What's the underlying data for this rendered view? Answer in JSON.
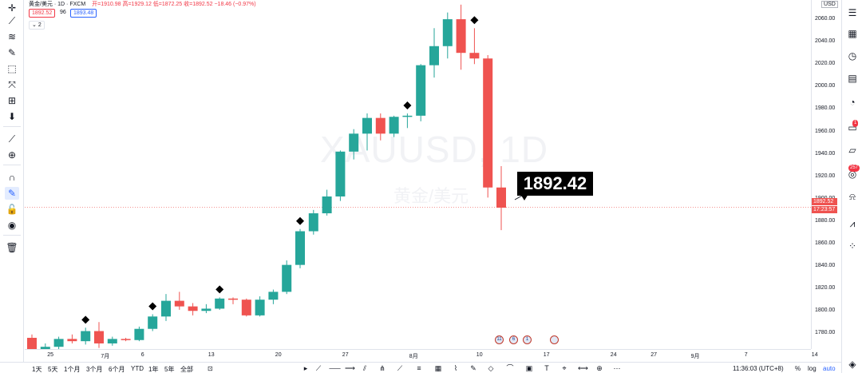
{
  "legend": {
    "symbol_title": "黄金/美元 · 1D · FXCM",
    "ohlc_text": "开=1910.98 高=1929.12 低=1872.25 收=1892.52 −18.46 (−0.97%)",
    "bid": "1892.52",
    "spread": "96",
    "ask": "1893.48",
    "indicator_count": "2",
    "chevron": "⌄"
  },
  "watermark": {
    "symbol": "XAUUSD, 1D",
    "name": "黄金/美元"
  },
  "callout": {
    "price": "1892.42"
  },
  "price_axis": {
    "currency": "USD",
    "ticks": [
      "2060.00",
      "2040.00",
      "2020.00",
      "2000.00",
      "1980.00",
      "1960.00",
      "1940.00",
      "1920.00",
      "1900.00",
      "1880.00",
      "1860.00",
      "1840.00",
      "1820.00",
      "1800.00",
      "1780.00"
    ],
    "last_price": "1892.52",
    "countdown": "17:23:57"
  },
  "time_axis": {
    "labels": [
      "25",
      "7月",
      "6",
      "13",
      "20",
      "27",
      "8月",
      "10",
      "17",
      "24",
      "27",
      "9月",
      "7",
      "14"
    ]
  },
  "bottom": {
    "ranges": [
      "1天",
      "5天",
      "1个月",
      "3个月",
      "6个月",
      "YTD",
      "1年",
      "5年",
      "全部"
    ],
    "clock": "11:36:03 (UTC+8)",
    "percent": "%",
    "log": "log",
    "auto": "auto"
  },
  "events": [
    "11",
    "6",
    "1"
  ],
  "right_badges": [
    "1",
    "257"
  ],
  "chart_data": {
    "type": "candlestick",
    "title": "XAUUSD, 1D",
    "ylim": [
      1766,
      2075
    ],
    "up_color": "#26a69a",
    "down_color": "#ef5350",
    "ohlc": [
      [
        1776,
        1779,
        1762,
        1765
      ],
      [
        1765,
        1771,
        1762,
        1768
      ],
      [
        1768,
        1777,
        1766,
        1775
      ],
      [
        1775,
        1779,
        1771,
        1773
      ],
      [
        1773,
        1785,
        1770,
        1782
      ],
      [
        1782,
        1790,
        1767,
        1771
      ],
      [
        1771,
        1777,
        1769,
        1775
      ],
      [
        1775,
        1776,
        1773,
        1774
      ],
      [
        1774,
        1786,
        1773,
        1784
      ],
      [
        1784,
        1797,
        1782,
        1795
      ],
      [
        1795,
        1815,
        1791,
        1809
      ],
      [
        1809,
        1817,
        1801,
        1804
      ],
      [
        1804,
        1807,
        1796,
        1800
      ],
      [
        1800,
        1806,
        1798,
        1802
      ],
      [
        1802,
        1812,
        1801,
        1811
      ],
      [
        1811,
        1812,
        1806,
        1810
      ],
      [
        1810,
        1811,
        1795,
        1796
      ],
      [
        1796,
        1813,
        1795,
        1810
      ],
      [
        1810,
        1819,
        1806,
        1817
      ],
      [
        1817,
        1845,
        1815,
        1841
      ],
      [
        1841,
        1873,
        1838,
        1871
      ],
      [
        1871,
        1890,
        1868,
        1887
      ],
      [
        1887,
        1908,
        1885,
        1902
      ],
      [
        1902,
        1943,
        1898,
        1942
      ],
      [
        1942,
        1962,
        1935,
        1958
      ],
      [
        1958,
        1976,
        1943,
        1972
      ],
      [
        1972,
        1976,
        1952,
        1958
      ],
      [
        1958,
        1974,
        1955,
        1973
      ],
      [
        1973,
        1976,
        1963,
        1974
      ],
      [
        1974,
        2020,
        1969,
        2019
      ],
      [
        2019,
        2052,
        2008,
        2036
      ],
      [
        2036,
        2066,
        2025,
        2060
      ],
      [
        2060,
        2073,
        2015,
        2030
      ],
      [
        2030,
        2052,
        2020,
        2025
      ],
      [
        2025,
        2028,
        1901,
        1910
      ],
      [
        1910,
        1929,
        1872,
        1892
      ]
    ],
    "markers": [
      4,
      9,
      14,
      20,
      28,
      33
    ],
    "current_price": 1892.52
  }
}
